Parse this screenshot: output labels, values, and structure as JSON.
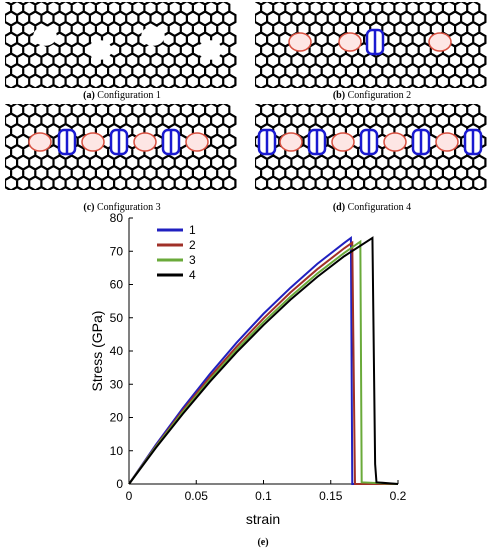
{
  "panels": [
    {
      "label": "(a)",
      "caption": "Configuration 1"
    },
    {
      "label": "(b)",
      "caption": "Configuration 2"
    },
    {
      "label": "(c)",
      "caption": "Configuration 3"
    },
    {
      "label": "(d)",
      "caption": "Configuration 4"
    }
  ],
  "chart_data": {
    "type": "line",
    "caption": "(e)",
    "x_label": "strain",
    "y_label": "Stress (GPa)",
    "xlim": [
      0,
      0.2
    ],
    "ylim": [
      0,
      80
    ],
    "xticks": [
      0,
      0.05,
      0.1,
      0.15,
      0.2
    ],
    "yticks": [
      0,
      10,
      20,
      30,
      40,
      50,
      60,
      70,
      80
    ],
    "legend": "upper left",
    "series": [
      {
        "name": "1",
        "color": "#2020c0",
        "x": [
          0,
          0.02,
          0.04,
          0.06,
          0.08,
          0.1,
          0.12,
          0.14,
          0.16,
          0.165,
          0.166,
          0.2
        ],
        "values": [
          0,
          11.8,
          22.8,
          33.0,
          42.5,
          51.2,
          59.0,
          66.2,
          72.5,
          74.0,
          0,
          0
        ]
      },
      {
        "name": "2",
        "color": "#a03028",
        "x": [
          0,
          0.02,
          0.04,
          0.06,
          0.08,
          0.1,
          0.12,
          0.14,
          0.16,
          0.166,
          0.168,
          0.2
        ],
        "values": [
          0,
          11.4,
          22.1,
          32.1,
          41.3,
          49.8,
          57.6,
          64.6,
          70.9,
          72.6,
          0,
          0
        ]
      },
      {
        "name": "3",
        "color": "#6aaa3a",
        "x": [
          0,
          0.02,
          0.04,
          0.06,
          0.08,
          0.1,
          0.12,
          0.14,
          0.16,
          0.172,
          0.173,
          0.2
        ],
        "values": [
          0,
          11.2,
          21.6,
          31.3,
          40.4,
          48.7,
          56.3,
          63.3,
          69.5,
          72.9,
          0.5,
          0
        ]
      },
      {
        "name": "4",
        "color": "#000000",
        "x": [
          0,
          0.02,
          0.04,
          0.06,
          0.08,
          0.1,
          0.12,
          0.14,
          0.16,
          0.181,
          0.183,
          0.184,
          0.2
        ],
        "values": [
          0,
          10.9,
          21.1,
          30.7,
          39.6,
          47.8,
          55.4,
          62.3,
          68.5,
          74.0,
          6,
          0.5,
          0
        ]
      }
    ]
  }
}
